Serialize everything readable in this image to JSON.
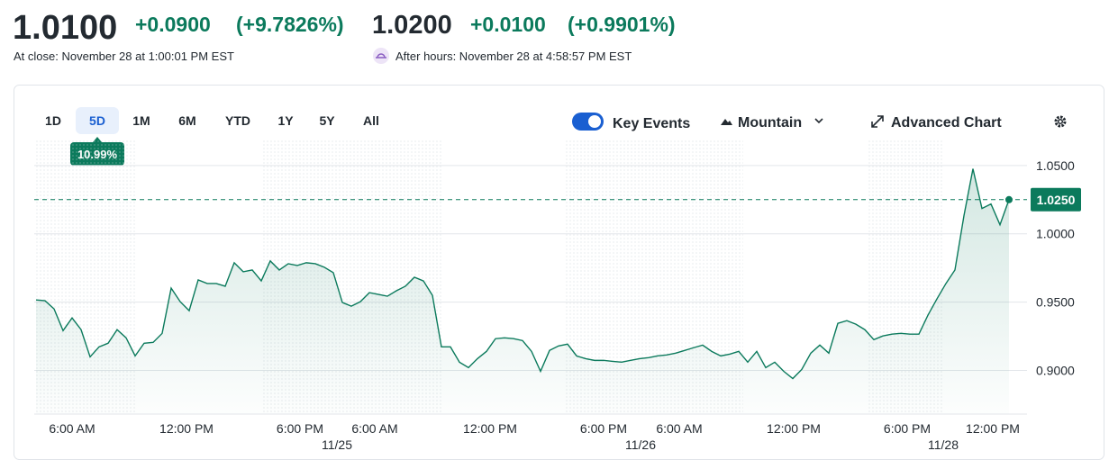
{
  "header": {
    "price": "1.0100",
    "change": "+0.0900",
    "change_pct": "(+9.7826%)",
    "ah_price": "1.0200",
    "ah_change": "+0.0100",
    "ah_change_pct": "(+0.9901%)",
    "close_note": "At close: November 28 at 1:00:01 PM EST",
    "ah_note": "After hours: November 28 at 4:58:57 PM EST"
  },
  "toolbar": {
    "ranges": [
      "1D",
      "5D",
      "1M",
      "6M",
      "YTD",
      "1Y",
      "5Y",
      "All"
    ],
    "selected": "5D",
    "range_change": "10.99%",
    "key_events": "Key Events",
    "chart_type": "Mountain",
    "advanced": "Advanced Chart"
  },
  "chart_data": {
    "type": "line",
    "color": "#0b7a5c",
    "values": [
      0.9516,
      0.951,
      0.945,
      0.9291,
      0.9384,
      0.9298,
      0.9099,
      0.9172,
      0.9199,
      0.9298,
      0.9238,
      0.9106,
      0.9199,
      0.9205,
      0.9271,
      0.9602,
      0.9503,
      0.9437,
      0.9662,
      0.9636,
      0.9636,
      0.9616,
      0.9788,
      0.9722,
      0.9735,
      0.9655,
      0.9801,
      0.9735,
      0.9781,
      0.9768,
      0.9788,
      0.9781,
      0.9755,
      0.9715,
      0.9497,
      0.947,
      0.9503,
      0.9569,
      0.9556,
      0.9543,
      0.9583,
      0.9616,
      0.9682,
      0.9655,
      0.9549,
      0.9172,
      0.9172,
      0.906,
      0.902,
      0.9086,
      0.9139,
      0.9232,
      0.9238,
      0.9232,
      0.9218,
      0.9139,
      0.8993,
      0.9146,
      0.9179,
      0.9192,
      0.9106,
      0.9086,
      0.9073,
      0.9073,
      0.9066,
      0.906,
      0.9073,
      0.9086,
      0.9093,
      0.9106,
      0.9113,
      0.9126,
      0.9146,
      0.9166,
      0.9185,
      0.9139,
      0.9106,
      0.9119,
      0.9139,
      0.906,
      0.9139,
      0.902,
      0.906,
      0.8993,
      0.894,
      0.9007,
      0.9126,
      0.9185,
      0.9126,
      0.9344,
      0.9364,
      0.9338,
      0.9298,
      0.9225,
      0.9252,
      0.9265,
      0.9271,
      0.9265,
      0.9265,
      0.9404,
      0.9523,
      0.9636,
      0.9735,
      1.0132,
      1.0476,
      1.0185,
      1.0218,
      1.0066,
      1.025
    ],
    "ylim": [
      0.868,
      1.069
    ],
    "yticks": [
      {
        "value": 0.9,
        "label": "0.9000"
      },
      {
        "value": 0.95,
        "label": "0.9500"
      },
      {
        "value": 1.0,
        "label": "1.0000"
      },
      {
        "value": 1.05,
        "label": "1.0500"
      }
    ],
    "grid": true,
    "x_labels": [
      "6:00 AM",
      "12:00 PM",
      "6:00 PM",
      "6:00 AM",
      "12:00 PM",
      "6:00 PM",
      "6:00 AM",
      "12:00 PM",
      "6:00 PM",
      "12:00 PM"
    ],
    "date_labels": [
      "11/25",
      "11/26",
      "11/28"
    ],
    "reference_line": {
      "value": 1.025,
      "label": "1.0250"
    }
  }
}
